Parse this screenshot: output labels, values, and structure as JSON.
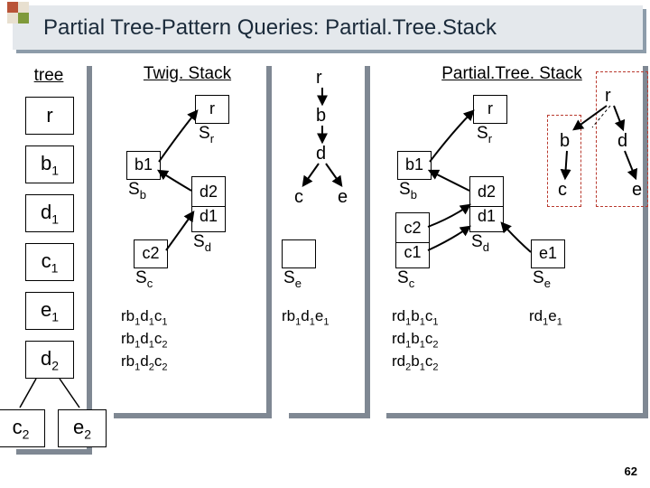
{
  "title": "Partial Tree-Pattern Queries: Partial.Tree.Stack",
  "pageNumber": "62",
  "cornerColors": [
    "#b95438",
    "#e8e0d0",
    "#e8e0d0",
    "#7f9a3a"
  ],
  "panels": {
    "tree": {
      "label": "tree"
    },
    "twig": {
      "label": "Twig. Stack"
    },
    "mid": {
      "label": ""
    },
    "pts": {
      "label": "Partial.Tree. Stack"
    }
  },
  "treeNodes": {
    "r": "r",
    "b1": "b|1",
    "d1": "d|1",
    "c1": "c|1",
    "e1": "e|1",
    "d2": "d|2",
    "c2": "c|2",
    "e2": "e|2"
  },
  "twig": {
    "Sr": "S|r",
    "Sb": "S|b",
    "Sc": "S|c",
    "Sd": "S|d",
    "Se": "S|e",
    "r": "r",
    "b1": "b|1",
    "c2": "c|2",
    "d2": "d|2",
    "d1": "d|1"
  },
  "midQuery": {
    "r": "r",
    "b": "b",
    "d": "d",
    "c": "c",
    "e": "e"
  },
  "midResults": {
    "left": "rb|1d|1e|1"
  },
  "pts": {
    "Sr": "S|r",
    "Sb": "S|b",
    "Sc": "S|c",
    "Sd": "S|d",
    "Se": "S|e",
    "r": "r",
    "b1": "b|1",
    "c2": "c|2",
    "c1": "c|1",
    "d2": "d|2",
    "d1": "d|1",
    "e1": "e|1"
  },
  "rightQuery": {
    "r": "r",
    "b": "b",
    "d": "d",
    "c": "c",
    "e": "e"
  },
  "results": {
    "twig": [
      "rb|1d|1c|1",
      "rb|1d|1c|2",
      "rb|1d|2c|2"
    ],
    "ptsLeft": [
      "rd|1b|1c|1",
      "rd|1b|1c|2",
      "rd|2b|1c|2"
    ],
    "ptsRight": [
      "rd|1e|1"
    ]
  }
}
